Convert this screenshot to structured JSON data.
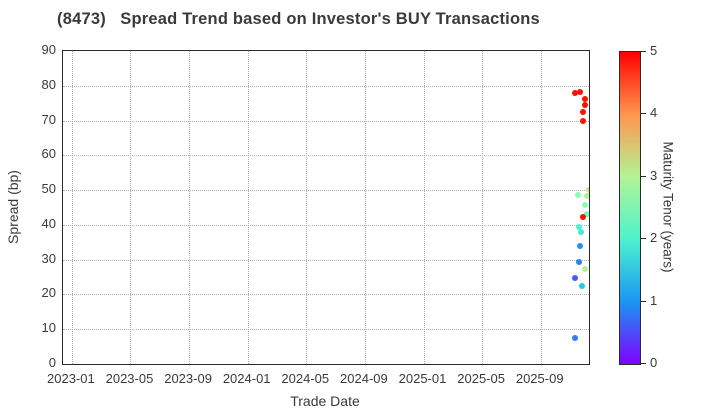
{
  "title": "(8473)   Spread Trend based on Investor's BUY Transactions",
  "chart_data": {
    "type": "scatter",
    "title": "(8473)   Spread Trend based on Investor's BUY Transactions",
    "xlabel": "Trade Date",
    "ylabel": "Spread (bp)",
    "ylim": [
      0,
      90
    ],
    "yticks": [
      0,
      10,
      20,
      30,
      40,
      50,
      60,
      70,
      80,
      90
    ],
    "xticks": [
      "2023-01",
      "2023-05",
      "2023-09",
      "2024-01",
      "2024-05",
      "2024-09",
      "2025-01",
      "2025-05",
      "2025-09"
    ],
    "xlim": [
      "2022-12-13",
      "2025-12-10"
    ],
    "grid": true,
    "grid_style": "dotted",
    "legend_position": "right-colorbar",
    "colorbar": {
      "label": "Maturity Tenor (years)",
      "min": 0,
      "max": 5,
      "ticks": [
        0,
        1,
        2,
        3,
        4,
        5
      ],
      "gradient_stops_bottom_to_top": [
        "#8000ff",
        "#1a96f3",
        "#4df3ce",
        "#b3f396",
        "#ff964f",
        "#ff0000"
      ]
    },
    "points": [
      {
        "date": "2025-11-12",
        "spread_bp": 77.8,
        "tenor_years": 5.0,
        "color": "#ff0f00"
      },
      {
        "date": "2025-11-22",
        "spread_bp": 78.3,
        "tenor_years": 5.0,
        "color": "#ff0f00"
      },
      {
        "date": "2025-12-01",
        "spread_bp": 76.3,
        "tenor_years": 5.0,
        "color": "#ff0f00"
      },
      {
        "date": "2025-12-01",
        "spread_bp": 74.5,
        "tenor_years": 5.0,
        "color": "#ff0f00"
      },
      {
        "date": "2025-11-28",
        "spread_bp": 72.6,
        "tenor_years": 5.0,
        "color": "#ff0f00"
      },
      {
        "date": "2025-11-27",
        "spread_bp": 69.9,
        "tenor_years": 5.0,
        "color": "#ff0f00"
      },
      {
        "date": "2025-12-09",
        "spread_bp": 50.0,
        "tenor_years": 3.2,
        "color": "#c7e789"
      },
      {
        "date": "2025-12-06",
        "spread_bp": 48.4,
        "tenor_years": 3.0,
        "color": "#b3f396"
      },
      {
        "date": "2025-11-18",
        "spread_bp": 48.6,
        "tenor_years": 2.6,
        "color": "#8afeaf"
      },
      {
        "date": "2025-12-02",
        "spread_bp": 45.6,
        "tenor_years": 2.6,
        "color": "#8afeaf"
      },
      {
        "date": "2025-12-05",
        "spread_bp": 43.0,
        "tenor_years": 2.4,
        "color": "#75feba"
      },
      {
        "date": "2025-11-29",
        "spread_bp": 42.4,
        "tenor_years": 5.0,
        "color": "#ff0f00"
      },
      {
        "date": "2025-11-20",
        "spread_bp": 39.5,
        "tenor_years": 2.0,
        "color": "#4df3ce"
      },
      {
        "date": "2025-11-24",
        "spread_bp": 38.0,
        "tenor_years": 1.9,
        "color": "#42edd3"
      },
      {
        "date": "2025-11-21",
        "spread_bp": 33.8,
        "tenor_years": 1.0,
        "color": "#1a96f3"
      },
      {
        "date": "2025-11-20",
        "spread_bp": 29.2,
        "tenor_years": 1.0,
        "color": "#2e7ff0"
      },
      {
        "date": "2025-12-02",
        "spread_bp": 27.2,
        "tenor_years": 3.0,
        "color": "#b3f396"
      },
      {
        "date": "2025-11-11",
        "spread_bp": 24.7,
        "tenor_years": 0.6,
        "color": "#445cfb"
      },
      {
        "date": "2025-11-26",
        "spread_bp": 22.4,
        "tenor_years": 1.5,
        "color": "#1acee3"
      },
      {
        "date": "2025-11-12",
        "spread_bp": 7.5,
        "tenor_years": 1.0,
        "color": "#2e7ff0"
      }
    ]
  }
}
